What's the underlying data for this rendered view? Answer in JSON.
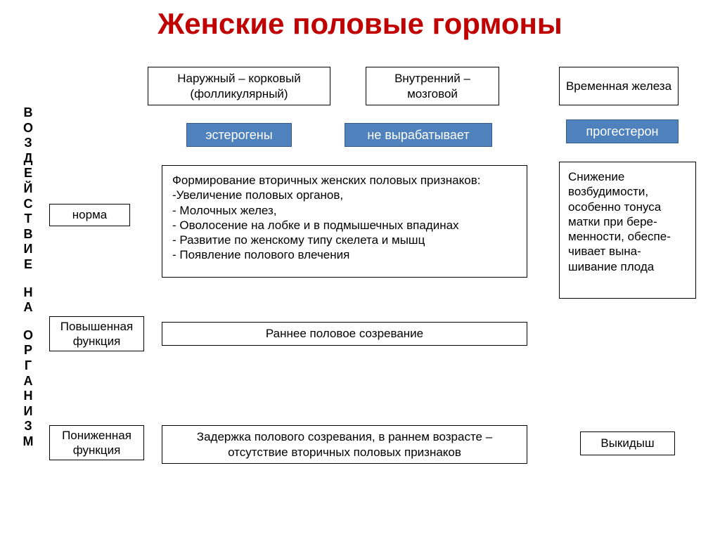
{
  "title": "Женские половые гормоны",
  "vertical_label": "ВОЗДЕЙСТВИЕ НА ОРГАНИЗМ",
  "colors": {
    "title": "#c00000",
    "blue_fill": "#4f81bd",
    "blue_border": "#385d8a",
    "box_border": "#000000",
    "background": "#ffffff",
    "text": "#000000",
    "blue_text": "#ffffff"
  },
  "header_boxes": {
    "outer": "Наружный – корковый (фолликулярный)",
    "inner": "Внутренний – мозговой",
    "temporal": "Временная железа"
  },
  "hormone_boxes": {
    "estrogens": "эстерогены",
    "no_produce": "не вырабатывает",
    "progesterone": "прогестерон"
  },
  "row_labels": {
    "norm": "норма",
    "hyper": "Повышенная функция",
    "hypo": "Пониженная функция"
  },
  "norm_effects": {
    "estrogens": "Формирование вторичных женских половых признаков:\n-Увеличение половых органов,\n- Молочных желез,\n- Оволосение на лобке и в подмышечных впадинах\n- Развитие по женскому типу скелета и мышц\n- Появление полового влечения",
    "progesterone": "Снижение возбудимости, особенно тонуса матки при бере-менности, обеспе-чивает вына-шивание плода"
  },
  "hyper_effects": {
    "estrogens": "Раннее половое созревание"
  },
  "hypo_effects": {
    "estrogens": "Задержка полового созревания, в раннем возрасте – отсутствие вторичных половых признаков",
    "progesterone": "Выкидыш"
  },
  "layout": {
    "title_fontsize": 42,
    "box_fontsize": 17,
    "blue_fontsize": 18,
    "vertical_fontsize": 18
  }
}
